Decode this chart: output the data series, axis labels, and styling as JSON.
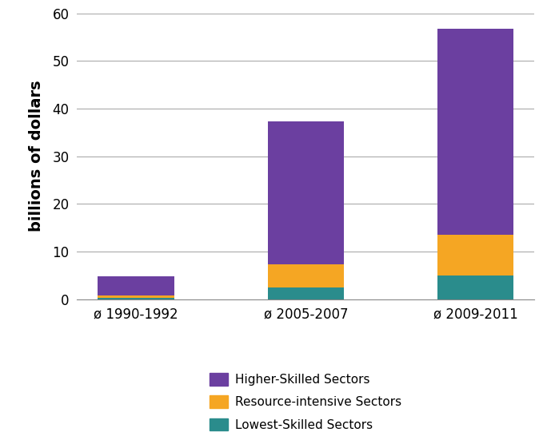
{
  "categories": [
    "ø 1990-1992",
    "ø 2005-2007",
    "ø 2009-2011"
  ],
  "lowest_skilled": [
    0.3,
    2.5,
    5.0
  ],
  "resource_intensive": [
    0.55,
    4.8,
    8.5
  ],
  "higher_skilled": [
    4.0,
    30.0,
    43.2
  ],
  "colors": {
    "lowest_skilled": "#2A8C8C",
    "resource_intensive": "#F5A623",
    "higher_skilled": "#6B3FA0"
  },
  "ylabel": "billions of dollars",
  "ylim": [
    0,
    60
  ],
  "yticks": [
    0,
    10,
    20,
    30,
    40,
    50,
    60
  ],
  "legend_labels": [
    "Higher-Skilled Sectors",
    "Resource-intensive Sectors",
    "Lowest-Skilled Sectors"
  ],
  "bar_width": 0.45,
  "background_color": "#ffffff",
  "ylabel_fontsize": 14,
  "tick_fontsize": 12,
  "legend_fontsize": 11
}
